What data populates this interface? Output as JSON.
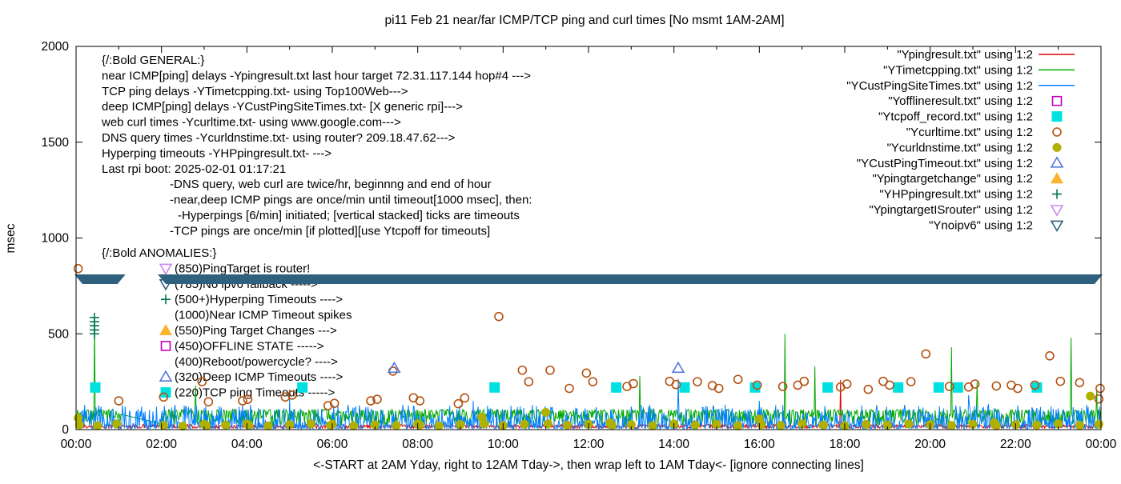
{
  "title": "pi11 Feb 21  near/far ICMP/TCP ping and curl times [No msmt 1AM-2AM]",
  "ylabel": "msec",
  "xlabel": "<-START at 2AM Yday, right to 12AM Tday->, then wrap left to 1AM Tday<- [ignore connecting lines]",
  "axes": {
    "ylim": [
      0,
      2000
    ],
    "ytick_labels": [
      "0",
      "500",
      "1000",
      "1500",
      "2000"
    ],
    "yticks": [
      0,
      500,
      1000,
      1500,
      2000
    ],
    "xlim_hours": [
      0,
      24
    ],
    "xtick_labels": [
      "00:00",
      "02:00",
      "04:00",
      "06:00",
      "08:00",
      "10:00",
      "12:00",
      "14:00",
      "16:00",
      "18:00",
      "20:00",
      "22:00",
      "00:00"
    ]
  },
  "annotations": {
    "general": [
      {
        "text": "{/:Bold GENERAL:}"
      },
      {
        "text": "near ICMP[ping] delays -Ypingresult.txt last hour target 72.31.117.144 hop#4 --->"
      },
      {
        "text": "TCP ping delays -YTimetcpping.txt- using Top100Web--->"
      },
      {
        "text": "deep ICMP[ping] delays -YCustPingSiteTimes.txt- [X generic rpi]--->"
      },
      {
        "text": "web curl times -Ycurltime.txt- using www.google.com--->"
      },
      {
        "text": "DNS query times -Ycurldnstime.txt- using router? 209.18.47.62--->"
      },
      {
        "text": "Hyperping timeouts -YHPpingresult.txt- --->"
      },
      {
        "text": "Last rpi boot: 2025-02-01 01:17:21"
      },
      {
        "text": "-DNS query, web curl are twice/hr, beginnng and end of hour",
        "indent": 1
      },
      {
        "text": "-near,deep ICMP pings are once/min until timeout[1000 msec], then:",
        "indent": 1
      },
      {
        "text": "-Hyperpings [6/min] initiated; [vertical stacked] ticks are timeouts",
        "indent": 2
      },
      {
        "text": "-TCP pings are once/min [if plotted][use Ytcpoff for timeouts]",
        "indent": 1
      }
    ],
    "anomalies": [
      {
        "text": "{/:Bold ANOMALIES:}",
        "header": true
      },
      {
        "text": "(850)PingTarget is router!",
        "marker": "triangle-down-open",
        "color": "#cc88ee"
      },
      {
        "text": "(785)No ipv6 fallback ----->",
        "marker": "triangle-down-open",
        "color": "#2f617e"
      },
      {
        "text": "(500+)Hyperping Timeouts ---->",
        "marker": "plus",
        "color": "#007850"
      },
      {
        "text": "(1000)Near ICMP Timeout spikes"
      },
      {
        "text": "(550)Ping Target Changes --->",
        "marker": "triangle-filled",
        "color": "#ffb22d"
      },
      {
        "text": "(450)OFFLINE STATE ----->",
        "marker": "square-open",
        "color": "#c000c0"
      },
      {
        "text": "(400)Reboot/powercycle? ---->"
      },
      {
        "text": "(320)Deep ICMP Timeouts ---->",
        "marker": "triangle-open",
        "color": "#5577dd"
      },
      {
        "text": "(220)TCP ping Timeouts ----->",
        "marker": "square-filled",
        "color": "#00e0e0"
      }
    ]
  },
  "legend": [
    {
      "label": "\"Ypingresult.txt\" using 1:2",
      "sample": "line",
      "color": "#e00000"
    },
    {
      "label": "\"YTimetcpping.txt\" using 1:2",
      "sample": "line",
      "color": "#00a800"
    },
    {
      "label": "\"YCustPingSiteTimes.txt\" using 1:2",
      "sample": "line",
      "color": "#0080ff"
    },
    {
      "label": "\"Yofflineresult.txt\" using 1:2",
      "sample": "point",
      "marker": "square-open",
      "color": "#c000c0"
    },
    {
      "label": "\"Ytcpoff_record.txt\" using 1:2",
      "sample": "point",
      "marker": "square-filled",
      "color": "#00e0e0"
    },
    {
      "label": "\"Ycurltime.txt\" using 1:2",
      "sample": "point",
      "marker": "circle-open",
      "color": "#b35212"
    },
    {
      "label": "\"Ycurldnstime.txt\" using 1:2",
      "sample": "point",
      "marker": "circle-filled",
      "color": "#b0b000"
    },
    {
      "label": "\"YCustPingTimeout.txt\" using 1:2",
      "sample": "point",
      "marker": "triangle-open",
      "color": "#5577dd"
    },
    {
      "label": "\"Ypingtargetchange\" using 1:2",
      "sample": "point",
      "marker": "triangle-filled",
      "color": "#ffb22d"
    },
    {
      "label": "\"YHPpingresult.txt\" using 1:2",
      "sample": "point",
      "marker": "plus",
      "color": "#007850"
    },
    {
      "label": "\"YpingtargetISrouter\" using 1:2",
      "sample": "point",
      "marker": "triangle-down-open",
      "color": "#cc88ee"
    },
    {
      "label": "\"Ynoipv6\" using 1:2",
      "sample": "point",
      "marker": "triangle-down-open",
      "color": "#2f617e"
    }
  ],
  "chart_data": {
    "type": "line",
    "x_unit": "hours_of_day",
    "xlim": [
      0,
      24
    ],
    "ylim": [
      0,
      2000
    ],
    "no_measurement_window_hours": [
      1,
      2
    ],
    "series": [
      {
        "name": "Ypingresult.txt",
        "style": "noisy-line",
        "color": "#e00000",
        "base": 17,
        "noise_amp": 10,
        "spikes": [
          [
            17.9,
            260
          ]
        ]
      },
      {
        "name": "YTimetcpping.txt",
        "style": "noisy-line",
        "color": "#00a800",
        "base": 105,
        "noise_down": 85,
        "gap": [
          1.05,
          2.0
        ],
        "gap_values": [
          80,
          30
        ],
        "spikes": [
          [
            0.43,
            580
          ],
          [
            2.8,
            230
          ],
          [
            13.2,
            280
          ],
          [
            16.6,
            500
          ],
          [
            17.3,
            330
          ],
          [
            20.5,
            430
          ],
          [
            21.1,
            250
          ],
          [
            23.3,
            480
          ],
          [
            23.9,
            210
          ]
        ]
      },
      {
        "name": "YCustPingSiteTimes.txt",
        "style": "noisy-line",
        "color": "#0080ff",
        "base": 5,
        "noise_up": 125,
        "spikes": [
          [
            5.0,
            160
          ],
          [
            9.3,
            150
          ],
          [
            14.1,
            265
          ],
          [
            16.0,
            150
          ],
          [
            20.9,
            180
          ]
        ]
      },
      {
        "name": "Yofflineresult.txt",
        "style": "points",
        "marker": "square-open",
        "color": "#c000c0",
        "points": []
      },
      {
        "name": "Ytcpoff_record.txt",
        "style": "points",
        "marker": "square-filled",
        "color": "#00e0e0",
        "points": [
          [
            0.45,
            220
          ],
          [
            5.3,
            220
          ],
          [
            9.8,
            220
          ],
          [
            12.65,
            220
          ],
          [
            14.25,
            220
          ],
          [
            15.9,
            220
          ],
          [
            17.6,
            220
          ],
          [
            19.25,
            220
          ],
          [
            20.2,
            220
          ],
          [
            20.65,
            220
          ],
          [
            22.5,
            220
          ]
        ]
      },
      {
        "name": "Ycurltime.txt",
        "style": "points",
        "marker": "circle-open",
        "color": "#b35212",
        "points": [
          [
            0.05,
            840
          ],
          [
            1.0,
            150
          ],
          [
            2.05,
            170
          ],
          [
            2.95,
            250
          ],
          [
            3.1,
            145
          ],
          [
            3.9,
            150
          ],
          [
            4.02,
            158
          ],
          [
            4.9,
            170
          ],
          [
            5.06,
            180
          ],
          [
            5.9,
            125
          ],
          [
            6.05,
            137
          ],
          [
            6.9,
            150
          ],
          [
            7.05,
            158
          ],
          [
            7.42,
            305
          ],
          [
            7.9,
            166
          ],
          [
            8.05,
            150
          ],
          [
            8.95,
            135
          ],
          [
            9.1,
            165
          ],
          [
            9.9,
            590
          ],
          [
            10.45,
            310
          ],
          [
            10.6,
            250
          ],
          [
            11.1,
            310
          ],
          [
            11.55,
            215
          ],
          [
            11.95,
            295
          ],
          [
            12.1,
            250
          ],
          [
            12.9,
            225
          ],
          [
            13.05,
            240
          ],
          [
            13.9,
            252
          ],
          [
            14.05,
            235
          ],
          [
            14.55,
            250
          ],
          [
            14.9,
            230
          ],
          [
            15.05,
            215
          ],
          [
            15.5,
            262
          ],
          [
            15.95,
            232
          ],
          [
            16.55,
            225
          ],
          [
            16.9,
            232
          ],
          [
            17.05,
            252
          ],
          [
            17.9,
            222
          ],
          [
            18.05,
            238
          ],
          [
            18.55,
            210
          ],
          [
            18.9,
            252
          ],
          [
            19.05,
            232
          ],
          [
            19.55,
            250
          ],
          [
            19.9,
            395
          ],
          [
            20.45,
            225
          ],
          [
            20.9,
            222
          ],
          [
            21.05,
            238
          ],
          [
            21.55,
            228
          ],
          [
            21.9,
            232
          ],
          [
            22.05,
            215
          ],
          [
            22.45,
            232
          ],
          [
            22.8,
            385
          ],
          [
            23.05,
            252
          ],
          [
            23.5,
            245
          ],
          [
            23.95,
            160
          ],
          [
            23.98,
            215
          ]
        ]
      },
      {
        "name": "Ycurldnstime.txt",
        "style": "points",
        "marker": "circle-filled",
        "color": "#b0b000",
        "points": [
          [
            0.05,
            60
          ],
          [
            0.08,
            25
          ],
          [
            0.5,
            20
          ],
          [
            0.95,
            30
          ],
          [
            2.05,
            22
          ],
          [
            2.5,
            18
          ],
          [
            3.0,
            28
          ],
          [
            3.05,
            20
          ],
          [
            3.5,
            24
          ],
          [
            4.0,
            30
          ],
          [
            4.05,
            22
          ],
          [
            4.5,
            20
          ],
          [
            5.0,
            26
          ],
          [
            5.5,
            30
          ],
          [
            5.95,
            22
          ],
          [
            6.0,
            28
          ],
          [
            6.5,
            20
          ],
          [
            7.0,
            25
          ],
          [
            7.5,
            22
          ],
          [
            8.0,
            30
          ],
          [
            8.05,
            24
          ],
          [
            8.5,
            20
          ],
          [
            9.0,
            26
          ],
          [
            9.5,
            65
          ],
          [
            9.55,
            30
          ],
          [
            10.0,
            22
          ],
          [
            10.5,
            28
          ],
          [
            11.0,
            90
          ],
          [
            11.05,
            30
          ],
          [
            11.5,
            24
          ],
          [
            12.0,
            28
          ],
          [
            12.5,
            35
          ],
          [
            12.55,
            22
          ],
          [
            13.0,
            26
          ],
          [
            13.5,
            20
          ],
          [
            14.0,
            30
          ],
          [
            14.5,
            24
          ],
          [
            15.0,
            28
          ],
          [
            15.5,
            20
          ],
          [
            16.0,
            55
          ],
          [
            16.05,
            26
          ],
          [
            16.5,
            22
          ],
          [
            17.0,
            30
          ],
          [
            17.5,
            24
          ],
          [
            18.0,
            20
          ],
          [
            18.5,
            28
          ],
          [
            19.0,
            24
          ],
          [
            19.5,
            30
          ],
          [
            20.0,
            26
          ],
          [
            20.5,
            22
          ],
          [
            21.0,
            28
          ],
          [
            21.5,
            35
          ],
          [
            21.55,
            20
          ],
          [
            22.0,
            26
          ],
          [
            22.5,
            24
          ],
          [
            23.0,
            30
          ],
          [
            23.5,
            22
          ],
          [
            23.75,
            175
          ],
          [
            23.95,
            28
          ]
        ]
      },
      {
        "name": "YCustPingTimeout.txt",
        "style": "points",
        "marker": "triangle-open",
        "color": "#5577dd",
        "points": [
          [
            7.45,
            320
          ],
          [
            14.1,
            320
          ]
        ]
      },
      {
        "name": "Ypingtargetchange",
        "style": "points",
        "marker": "triangle-filled",
        "color": "#ffb22d",
        "points": []
      },
      {
        "name": "YHPpingresult.txt",
        "style": "points",
        "marker": "plus",
        "color": "#007850",
        "points": [
          [
            0.43,
            500
          ],
          [
            0.43,
            520
          ],
          [
            0.43,
            542
          ],
          [
            0.43,
            563
          ],
          [
            0.43,
            585
          ]
        ]
      },
      {
        "name": "YpingtargetISrouter",
        "style": "points",
        "marker": "triangle-down-open",
        "color": "#cc88ee",
        "points": []
      },
      {
        "name": "Ynoipv6",
        "style": "band",
        "marker": "triangle-down-filled",
        "color": "#2f617e",
        "value": 785,
        "segments": [
          [
            0,
            1.12
          ],
          [
            1.95,
            24
          ]
        ]
      }
    ]
  }
}
